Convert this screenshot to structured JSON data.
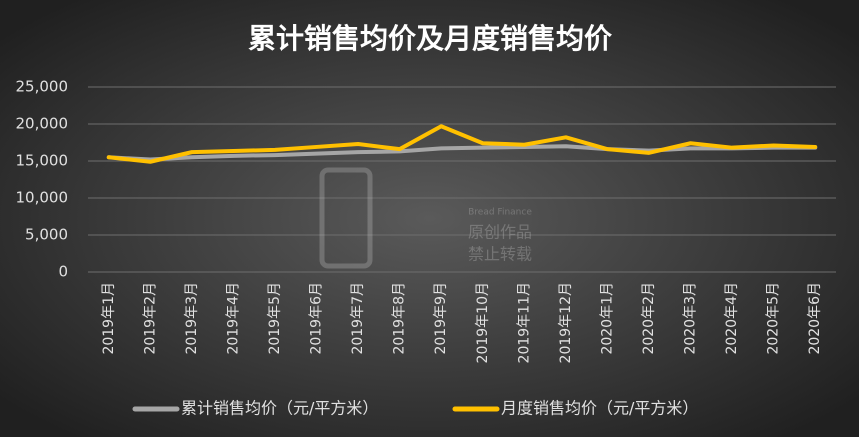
{
  "chart_data": {
    "type": "line",
    "title": "累计销售均价及月度销售均价",
    "categories": [
      "2019年1月",
      "2019年2月",
      "2019年3月",
      "2019年4月",
      "2019年5月",
      "2019年6月",
      "2019年7月",
      "2019年8月",
      "2019年9月",
      "2019年10月",
      "2019年11月",
      "2019年12月",
      "2020年1月",
      "2020年2月",
      "2020年3月",
      "2020年4月",
      "2020年5月",
      "2020年6月"
    ],
    "series": [
      {
        "name": "累计销售均价（元/平方米）",
        "color": "#a6a6a6",
        "values": [
          15500,
          15200,
          15500,
          15700,
          15800,
          16000,
          16200,
          16300,
          16700,
          16800,
          16900,
          17000,
          16600,
          16400,
          16700,
          16700,
          16800,
          16800
        ]
      },
      {
        "name": "月度销售均价（元/平方米）",
        "color": "#ffc000",
        "values": [
          15500,
          14900,
          16200,
          16350,
          16500,
          16900,
          17300,
          16600,
          19700,
          17400,
          17200,
          18200,
          16600,
          16100,
          17400,
          16800,
          17100,
          16900
        ]
      }
    ],
    "ylim": [
      0,
      25000
    ],
    "yticks": [
      0,
      {
        "value": 5000,
        "label": "5,000"
      },
      {
        "value": 10000,
        "label": "10,000"
      },
      {
        "value": 15000,
        "label": "15,000"
      },
      {
        "value": 20000,
        "label": "20,000"
      },
      {
        "value": 25000,
        "label": "25,000"
      }
    ],
    "grid": true,
    "legend": "bottom",
    "watermark": [
      "Bread Finance",
      "原创作品",
      "禁止转载"
    ]
  }
}
